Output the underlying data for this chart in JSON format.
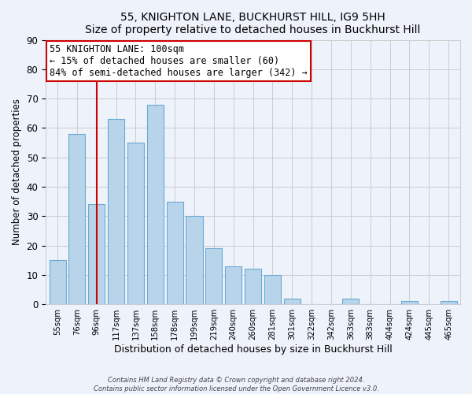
{
  "title": "55, KNIGHTON LANE, BUCKHURST HILL, IG9 5HH",
  "subtitle": "Size of property relative to detached houses in Buckhurst Hill",
  "xlabel": "Distribution of detached houses by size in Buckhurst Hill",
  "ylabel": "Number of detached properties",
  "bar_labels": [
    "55sqm",
    "76sqm",
    "96sqm",
    "117sqm",
    "137sqm",
    "158sqm",
    "178sqm",
    "199sqm",
    "219sqm",
    "240sqm",
    "260sqm",
    "281sqm",
    "301sqm",
    "322sqm",
    "342sqm",
    "363sqm",
    "383sqm",
    "404sqm",
    "424sqm",
    "445sqm",
    "465sqm"
  ],
  "bar_heights": [
    15,
    58,
    34,
    63,
    55,
    68,
    35,
    30,
    19,
    13,
    12,
    10,
    2,
    0,
    0,
    2,
    0,
    0,
    1,
    0,
    1
  ],
  "bar_color": "#b8d4ea",
  "bar_edge_color": "#6aaad4",
  "vline_x_index": 2,
  "vline_color": "#cc0000",
  "annotation_line1": "55 KNIGHTON LANE: 100sqm",
  "annotation_line2": "← 15% of detached houses are smaller (60)",
  "annotation_line3": "84% of semi-detached houses are larger (342) →",
  "annotation_box_edgecolor": "#cc0000",
  "annotation_box_facecolor": "#ffffff",
  "ylim": [
    0,
    90
  ],
  "yticks": [
    0,
    10,
    20,
    30,
    40,
    50,
    60,
    70,
    80,
    90
  ],
  "grid_color": "#cccccc",
  "bg_color": "#eef2fa",
  "footer_line1": "Contains HM Land Registry data © Crown copyright and database right 2024.",
  "footer_line2": "Contains public sector information licensed under the Open Government Licence v3.0."
}
